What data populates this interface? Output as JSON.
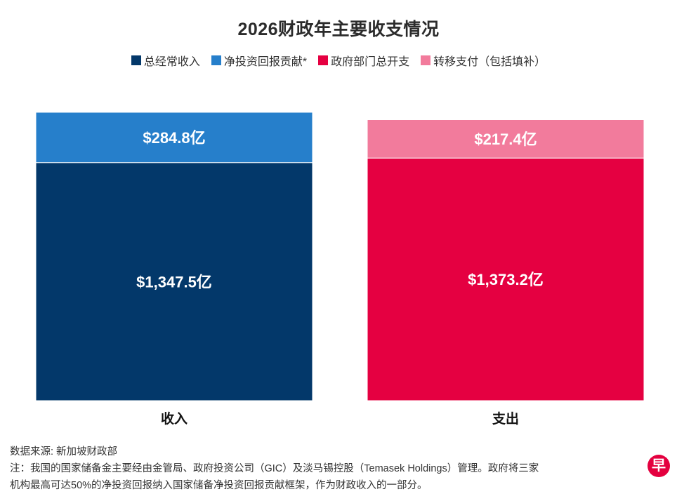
{
  "title": "2026财政年主要收支情况",
  "chart_data": {
    "type": "bar",
    "stacked": true,
    "title": "2026财政年主要收支情况",
    "categories": [
      "收入",
      "支出"
    ],
    "series": [
      {
        "name": "总经常收入",
        "stack": "收入",
        "value": 1347.5,
        "label": "$1,347.5亿",
        "color": "#03386a"
      },
      {
        "name": "净投资回报贡献*",
        "stack": "收入",
        "value": 284.8,
        "label": "$284.8亿",
        "color": "#267fcb"
      },
      {
        "name": "政府部门总开支",
        "stack": "支出",
        "value": 1373.2,
        "label": "$1,373.2亿",
        "color": "#e50041"
      },
      {
        "name": "转移支付（包括填补）",
        "stack": "支出",
        "value": 217.4,
        "label": "$217.4亿",
        "color": "#f27b9c"
      }
    ],
    "ylim": [
      0,
      1632.3
    ],
    "xlabel": "",
    "ylabel": "",
    "legend": "top-center",
    "grid": false
  },
  "footer": {
    "source": "数据来源: 新加坡财政部",
    "note_line1": "注：我国的国家储备金主要经由金管局、政府投资公司（GIC）及淡马锡控股（Temasek Holdings）管理。政府将三家",
    "note_line2": "机构最高可达50%的净投资回报纳入国家储备净投资回报贡献框架，作为财政收入的一部分。"
  },
  "logo": "早"
}
